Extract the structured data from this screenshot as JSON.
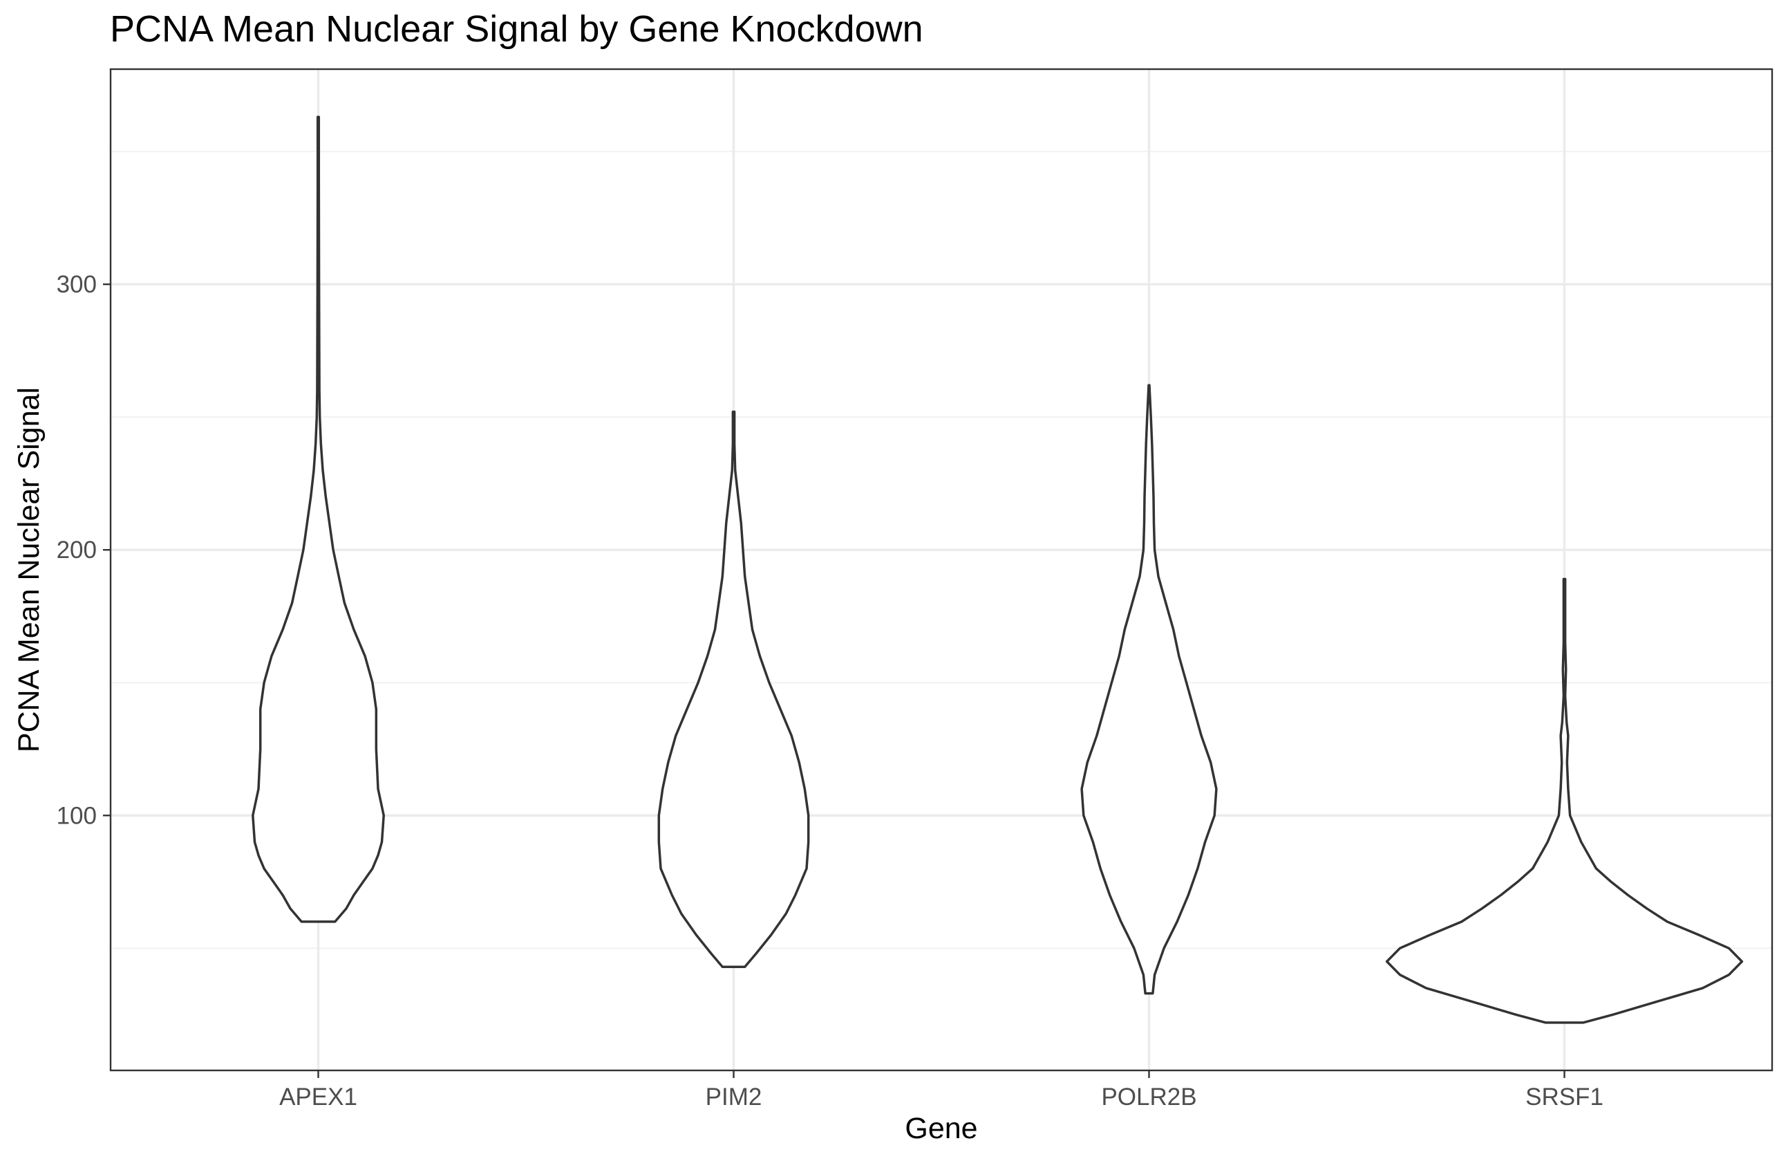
{
  "chart_data": {
    "type": "violin",
    "title": "PCNA Mean Nuclear Signal by Gene Knockdown",
    "xlabel": "Gene",
    "ylabel": "PCNA Mean Nuclear Signal",
    "categories": [
      "APEX1",
      "PIM2",
      "POLR2B",
      "SRSF1"
    ],
    "ylim": [
      4,
      381
    ],
    "yticks": [
      100,
      200,
      300
    ],
    "grid": true,
    "legend": "none",
    "violins": [
      {
        "category": "APEX1",
        "min": 60,
        "max": 363,
        "profile": [
          [
            60,
            0.045
          ],
          [
            65,
            0.075
          ],
          [
            70,
            0.095
          ],
          [
            75,
            0.12
          ],
          [
            80,
            0.145
          ],
          [
            85,
            0.16
          ],
          [
            90,
            0.17
          ],
          [
            100,
            0.175
          ],
          [
            110,
            0.16
          ],
          [
            125,
            0.155
          ],
          [
            140,
            0.155
          ],
          [
            150,
            0.145
          ],
          [
            160,
            0.125
          ],
          [
            170,
            0.095
          ],
          [
            180,
            0.07
          ],
          [
            190,
            0.055
          ],
          [
            200,
            0.04
          ],
          [
            210,
            0.03
          ],
          [
            220,
            0.02
          ],
          [
            230,
            0.012
          ],
          [
            240,
            0.007
          ],
          [
            250,
            0.004
          ],
          [
            260,
            0.003
          ],
          [
            300,
            0.002
          ],
          [
            340,
            0.0015
          ],
          [
            363,
            0.0015
          ]
        ]
      },
      {
        "category": "PIM2",
        "min": 43,
        "max": 252,
        "profile": [
          [
            43,
            0.03
          ],
          [
            48,
            0.06
          ],
          [
            55,
            0.1
          ],
          [
            63,
            0.14
          ],
          [
            70,
            0.165
          ],
          [
            80,
            0.195
          ],
          [
            90,
            0.2
          ],
          [
            100,
            0.2
          ],
          [
            110,
            0.19
          ],
          [
            120,
            0.175
          ],
          [
            130,
            0.155
          ],
          [
            140,
            0.125
          ],
          [
            150,
            0.095
          ],
          [
            160,
            0.07
          ],
          [
            170,
            0.05
          ],
          [
            180,
            0.04
          ],
          [
            190,
            0.03
          ],
          [
            200,
            0.025
          ],
          [
            210,
            0.02
          ],
          [
            220,
            0.012
          ],
          [
            230,
            0.004
          ],
          [
            240,
            0.002
          ],
          [
            252,
            0.002
          ]
        ]
      },
      {
        "category": "POLR2B",
        "min": 33,
        "max": 262,
        "profile": [
          [
            33,
            0.01
          ],
          [
            40,
            0.015
          ],
          [
            50,
            0.04
          ],
          [
            60,
            0.075
          ],
          [
            70,
            0.105
          ],
          [
            80,
            0.13
          ],
          [
            90,
            0.15
          ],
          [
            100,
            0.175
          ],
          [
            110,
            0.18
          ],
          [
            120,
            0.165
          ],
          [
            130,
            0.14
          ],
          [
            140,
            0.12
          ],
          [
            150,
            0.1
          ],
          [
            160,
            0.08
          ],
          [
            170,
            0.065
          ],
          [
            180,
            0.045
          ],
          [
            190,
            0.025
          ],
          [
            200,
            0.015
          ],
          [
            210,
            0.013
          ],
          [
            220,
            0.012
          ],
          [
            230,
            0.01
          ],
          [
            240,
            0.008
          ],
          [
            250,
            0.005
          ],
          [
            262,
            0.001
          ]
        ]
      },
      {
        "category": "SRSF1",
        "min": 22,
        "max": 189,
        "profile": [
          [
            22,
            0.05
          ],
          [
            25,
            0.13
          ],
          [
            30,
            0.25
          ],
          [
            35,
            0.37
          ],
          [
            40,
            0.44
          ],
          [
            45,
            0.475
          ],
          [
            50,
            0.44
          ],
          [
            55,
            0.36
          ],
          [
            60,
            0.275
          ],
          [
            65,
            0.22
          ],
          [
            70,
            0.17
          ],
          [
            75,
            0.125
          ],
          [
            80,
            0.085
          ],
          [
            90,
            0.045
          ],
          [
            100,
            0.015
          ],
          [
            110,
            0.01
          ],
          [
            120,
            0.007
          ],
          [
            130,
            0.01
          ],
          [
            135,
            0.006
          ],
          [
            145,
            0.002
          ],
          [
            155,
            0.004
          ],
          [
            165,
            0.002
          ],
          [
            180,
            0.002
          ],
          [
            189,
            0.002
          ]
        ]
      }
    ]
  }
}
